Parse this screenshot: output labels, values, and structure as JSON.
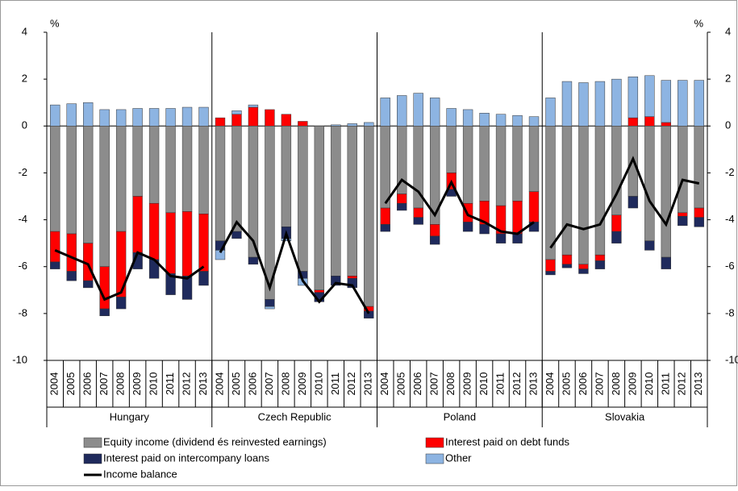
{
  "chart_data": {
    "type": "bar",
    "stacked": true,
    "y_unit": "%",
    "groups": [
      "Hungary",
      "Czech Republic",
      "Poland",
      "Slovakia"
    ],
    "categories": [
      "2004",
      "2005",
      "2006",
      "2007",
      "2008",
      "2009",
      "2010",
      "2011",
      "2012",
      "2013",
      "2004",
      "2005",
      "2006",
      "2007",
      "2008",
      "2009",
      "2010",
      "2011",
      "2012",
      "2013",
      "2004",
      "2005",
      "2006",
      "2007",
      "2008",
      "2009",
      "2010",
      "2011",
      "2012",
      "2013",
      "2004",
      "2005",
      "2006",
      "2007",
      "2008",
      "2009",
      "2010",
      "2011",
      "2012",
      "2013"
    ],
    "series": [
      {
        "name": "Equity income (dividend és reinvested earnings)",
        "color": "#8c8c8c",
        "values": [
          -4.5,
          -4.6,
          -5.0,
          -6.0,
          -4.5,
          -3.0,
          -3.3,
          -3.7,
          -3.65,
          -3.75,
          -4.9,
          -4.5,
          -5.6,
          -7.4,
          -4.3,
          -6.2,
          -7.0,
          -6.4,
          -6.4,
          -7.7,
          -3.5,
          -2.9,
          -3.5,
          -4.2,
          -2.0,
          -3.3,
          -3.2,
          -3.4,
          -3.2,
          -2.8,
          -5.7,
          -5.5,
          -5.9,
          -5.5,
          -3.8,
          -3.0,
          -4.9,
          -5.6,
          -3.7,
          -3.5
        ]
      },
      {
        "name": "Interest paid on debt funds",
        "color": "#ff0000",
        "values": [
          -1.3,
          -1.6,
          -1.6,
          -1.8,
          -2.8,
          -2.4,
          -2.4,
          -2.6,
          -2.75,
          -2.45,
          0.35,
          0.5,
          0.8,
          0.7,
          0.5,
          0.2,
          -0.1,
          0,
          -0.1,
          -0.2,
          -0.7,
          -0.4,
          -0.4,
          -0.5,
          -0.7,
          -0.8,
          -1.0,
          -1.2,
          -1.4,
          -1.3,
          -0.5,
          -0.4,
          -0.2,
          -0.25,
          -0.7,
          0.35,
          0.4,
          0.15,
          -0.15,
          -0.4
        ]
      },
      {
        "name": "Interest paid on intercompany loans",
        "color": "#1f2a5c",
        "values": [
          -0.3,
          -0.4,
          -0.3,
          -0.3,
          -0.5,
          -0.7,
          -0.8,
          -0.9,
          -1.0,
          -0.6,
          -0.4,
          -0.3,
          -0.3,
          -0.3,
          -0.5,
          -0.3,
          -0.4,
          -0.4,
          -0.4,
          -0.3,
          -0.3,
          -0.3,
          -0.3,
          -0.35,
          -0.3,
          -0.4,
          -0.4,
          -0.4,
          -0.4,
          -0.4,
          -0.15,
          -0.15,
          -0.2,
          -0.35,
          -0.5,
          -0.5,
          -0.4,
          -0.5,
          -0.4,
          -0.4
        ]
      },
      {
        "name": "Other",
        "color": "#8db4e2",
        "values": [
          0.9,
          0.95,
          1.0,
          0.7,
          0.7,
          0.75,
          0.75,
          0.75,
          0.8,
          0.8,
          -0.4,
          0.15,
          0.1,
          -0.1,
          -0.1,
          -0.3,
          0,
          0.05,
          0.1,
          0.15,
          1.2,
          1.3,
          1.4,
          1.2,
          0.75,
          0.7,
          0.55,
          0.5,
          0.45,
          0.4,
          1.2,
          1.9,
          1.85,
          1.9,
          2.0,
          1.75,
          1.75,
          1.8,
          1.95,
          1.95
        ]
      },
      {
        "name": "Income balance",
        "color": "#000000",
        "kind": "line",
        "values": [
          -5.3,
          -5.6,
          -5.9,
          -7.4,
          -7.1,
          -5.4,
          -5.7,
          -6.4,
          -6.5,
          -6.0,
          -5.4,
          -4.1,
          -4.9,
          -6.9,
          -4.6,
          -6.6,
          -7.5,
          -6.7,
          -6.8,
          -8.0,
          -3.3,
          -2.3,
          -2.8,
          -3.8,
          -2.4,
          -3.8,
          -4.1,
          -4.5,
          -4.6,
          -4.1,
          -5.2,
          -4.2,
          -4.4,
          -4.2,
          -2.9,
          -1.4,
          -3.2,
          -4.2,
          -2.3,
          -2.45
        ]
      }
    ],
    "ylim": [
      -10,
      4
    ],
    "yticks": [
      -10,
      -8,
      -6,
      -4,
      -2,
      0,
      2,
      4
    ]
  }
}
